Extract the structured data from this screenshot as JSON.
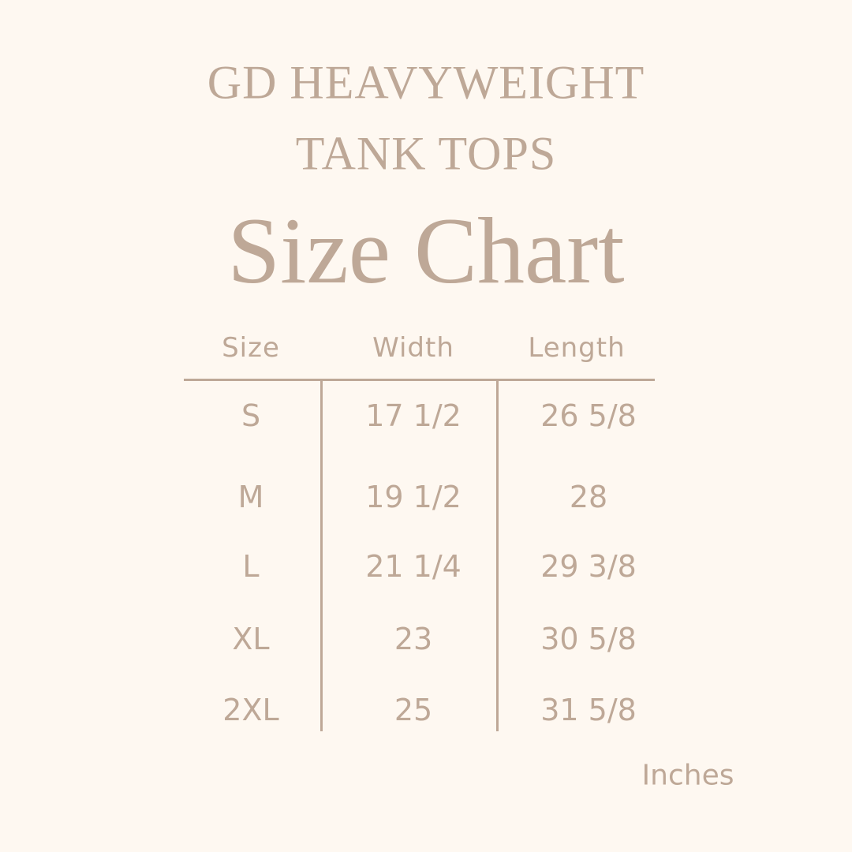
{
  "title": {
    "line1": "GD HEAVYWEIGHT",
    "line2": "TANK TOPS",
    "heading": "Size Chart"
  },
  "table": {
    "headers": [
      "Size",
      "Width",
      "Length"
    ],
    "rows": [
      [
        "S",
        "17 1/2",
        "26 5/8"
      ],
      [
        "M",
        "19 1/2",
        "28"
      ],
      [
        "L",
        "21 1/4",
        "29 3/8"
      ],
      [
        "XL",
        "23",
        "30 5/8"
      ],
      [
        "2XL",
        "25",
        "31 5/8"
      ]
    ]
  },
  "unit": "Inches",
  "colors": {
    "background": "#fef8f1",
    "text": "#bea897"
  }
}
